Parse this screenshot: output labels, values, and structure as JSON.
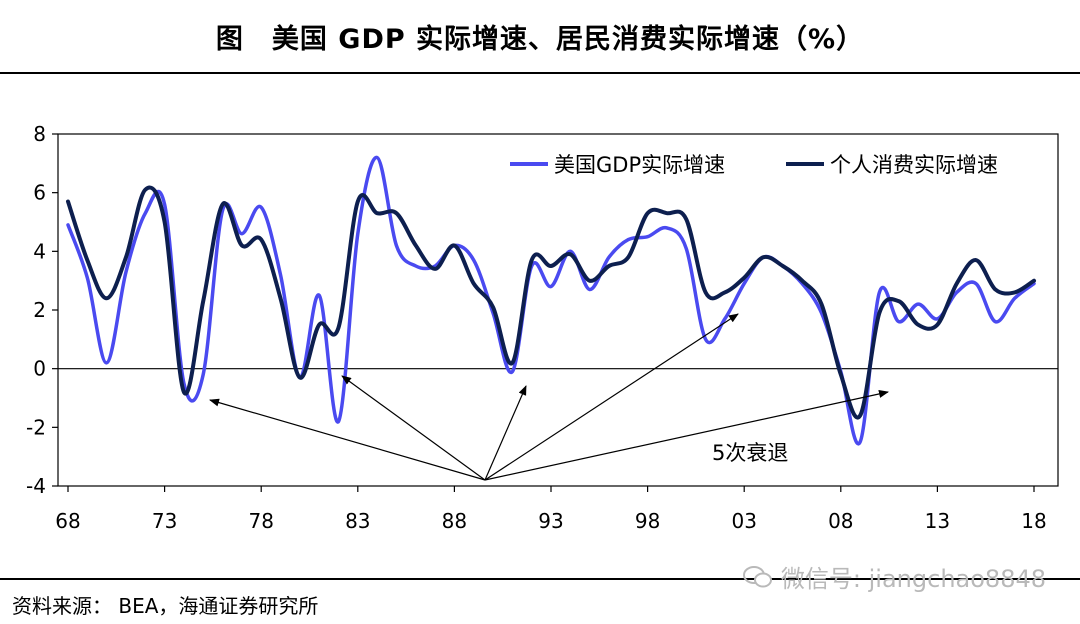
{
  "title": "图　美国 GDP 实际增速、居民消费实际增速（%）",
  "source": "资料来源：  BEA，海通证券研究所",
  "watermark": "微信号: jiangchao8848",
  "chart_data": {
    "type": "line",
    "title": "图　美国 GDP 实际增速、居民消费实际增速（%）",
    "x_ticks": [
      "68",
      "73",
      "78",
      "83",
      "88",
      "93",
      "98",
      "03",
      "08",
      "13",
      "18"
    ],
    "y_ticks": [
      "8",
      "6",
      "4",
      "2",
      "0",
      "-2",
      "-4"
    ],
    "xlim": [
      1968,
      2018
    ],
    "ylim": [
      -4,
      8
    ],
    "grid": false,
    "legend": "top-right",
    "x": [
      1968,
      1969,
      1970,
      1971,
      1972,
      1973,
      1974,
      1975,
      1976,
      1977,
      1978,
      1979,
      1980,
      1981,
      1982,
      1983,
      1984,
      1985,
      1986,
      1987,
      1988,
      1989,
      1990,
      1991,
      1992,
      1993,
      1994,
      1995,
      1996,
      1997,
      1998,
      1999,
      2000,
      2001,
      2002,
      2003,
      2004,
      2005,
      2006,
      2007,
      2008,
      2009,
      2010,
      2011,
      2012,
      2013,
      2014,
      2015,
      2016,
      2017,
      2018
    ],
    "series": [
      {
        "name": "美国GDP实际增速",
        "color": "#4a4af0",
        "values": [
          4.9,
          3.1,
          0.2,
          3.3,
          5.3,
          5.6,
          -0.5,
          -0.2,
          5.4,
          4.6,
          5.5,
          3.2,
          -0.3,
          2.5,
          -1.8,
          4.6,
          7.2,
          4.2,
          3.5,
          3.5,
          4.2,
          3.7,
          1.9,
          -0.1,
          3.5,
          2.8,
          4.0,
          2.7,
          3.8,
          4.4,
          4.5,
          4.8,
          4.1,
          1.0,
          1.7,
          2.9,
          3.8,
          3.5,
          2.9,
          1.9,
          -0.1,
          -2.5,
          2.6,
          1.6,
          2.2,
          1.7,
          2.6,
          2.9,
          1.6,
          2.4,
          2.9
        ]
      },
      {
        "name": "个人消费实际增速",
        "color": "#0d1f4f",
        "values": [
          5.7,
          3.7,
          2.4,
          3.8,
          6.1,
          5.0,
          -0.8,
          2.3,
          5.6,
          4.2,
          4.4,
          2.4,
          -0.3,
          1.5,
          1.4,
          5.7,
          5.3,
          5.3,
          4.2,
          3.4,
          4.2,
          2.9,
          2.1,
          0.2,
          3.7,
          3.5,
          3.9,
          3.0,
          3.5,
          3.8,
          5.3,
          5.3,
          5.1,
          2.6,
          2.6,
          3.1,
          3.8,
          3.5,
          3.0,
          2.2,
          -0.2,
          -1.6,
          1.9,
          2.3,
          1.5,
          1.5,
          2.9,
          3.7,
          2.7,
          2.6,
          3.0
        ]
      }
    ],
    "annotations": [
      {
        "text": "5次衰退"
      }
    ]
  }
}
